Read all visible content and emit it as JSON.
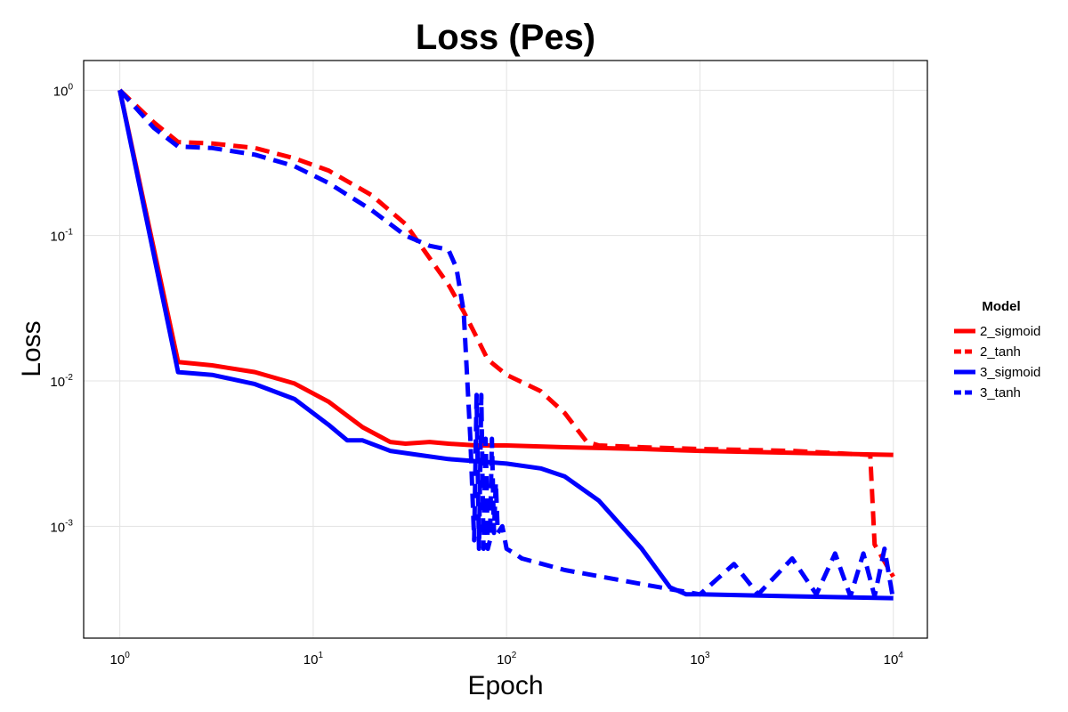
{
  "chart_data": {
    "type": "line",
    "title": "Loss (Pes)",
    "xlabel": "Epoch",
    "ylabel": "Loss",
    "xscale": "log",
    "yscale": "log",
    "xlim": [
      0.65,
      15000
    ],
    "ylim": [
      0.00017,
      1.6
    ],
    "grid": true,
    "x_ticks": [
      {
        "value": 1,
        "base": "10",
        "exp": "0"
      },
      {
        "value": 10,
        "base": "10",
        "exp": "1"
      },
      {
        "value": 100,
        "base": "10",
        "exp": "2"
      },
      {
        "value": 1000,
        "base": "10",
        "exp": "3"
      },
      {
        "value": 10000,
        "base": "10",
        "exp": "4"
      }
    ],
    "y_ticks": [
      {
        "value": 1,
        "base": "10",
        "exp": "0"
      },
      {
        "value": 0.1,
        "base": "10",
        "exp": "-1"
      },
      {
        "value": 0.01,
        "base": "10",
        "exp": "-2"
      },
      {
        "value": 0.001,
        "base": "10",
        "exp": "-3"
      }
    ],
    "legend": {
      "title": "Model",
      "position": "right"
    },
    "series": [
      {
        "name": "2_sigmoid",
        "color": "#ff0000",
        "dash": "solid",
        "x": [
          1,
          2,
          3,
          5,
          8,
          12,
          18,
          25,
          30,
          40,
          50,
          70,
          100,
          200,
          500,
          1000,
          3000,
          10000
        ],
        "y": [
          1.0,
          0.0135,
          0.0128,
          0.0115,
          0.0096,
          0.0072,
          0.0048,
          0.0038,
          0.0037,
          0.0038,
          0.0037,
          0.0036,
          0.0036,
          0.0035,
          0.0034,
          0.0033,
          0.0032,
          0.0031
        ]
      },
      {
        "name": "2_tanh",
        "color": "#ff0000",
        "dash": "dashed",
        "x": [
          1,
          1.5,
          2,
          3,
          5,
          8,
          12,
          20,
          30,
          40,
          50,
          60,
          70,
          80,
          100,
          150,
          200,
          260,
          300,
          500,
          1000,
          3000,
          7500,
          7600,
          8000,
          10000
        ],
        "y": [
          1.0,
          0.6,
          0.44,
          0.43,
          0.4,
          0.34,
          0.28,
          0.19,
          0.12,
          0.07,
          0.046,
          0.03,
          0.02,
          0.014,
          0.011,
          0.0085,
          0.006,
          0.0038,
          0.0036,
          0.0035,
          0.0034,
          0.0033,
          0.0031,
          0.0031,
          0.00075,
          0.00045
        ]
      },
      {
        "name": "3_sigmoid",
        "color": "#0000ff",
        "dash": "solid",
        "x": [
          1,
          2,
          3,
          5,
          8,
          12,
          15,
          18,
          25,
          35,
          50,
          100,
          150,
          200,
          300,
          500,
          700,
          850,
          1000,
          3000,
          10000
        ],
        "y": [
          1.0,
          0.0115,
          0.011,
          0.0095,
          0.0075,
          0.005,
          0.0039,
          0.0039,
          0.0033,
          0.0031,
          0.0029,
          0.0027,
          0.0025,
          0.0022,
          0.0015,
          0.0007,
          0.00038,
          0.00034,
          0.00034,
          0.00033,
          0.00032
        ]
      },
      {
        "name": "3_tanh",
        "color": "#0000ff",
        "dash": "dashed",
        "x": [
          1,
          1.5,
          2,
          3,
          5,
          8,
          12,
          20,
          30,
          40,
          50,
          55,
          60,
          65,
          68,
          70,
          72,
          74,
          76,
          78,
          80,
          82,
          84,
          86,
          88,
          90,
          95,
          100,
          110,
          120,
          200,
          500,
          1000,
          1500,
          2000,
          3000,
          4000,
          5000,
          6000,
          7000,
          8000,
          9000,
          10000
        ],
        "y": [
          1.0,
          0.55,
          0.41,
          0.4,
          0.36,
          0.3,
          0.23,
          0.15,
          0.1,
          0.085,
          0.08,
          0.06,
          0.03,
          0.004,
          0.0008,
          0.008,
          0.0007,
          0.008,
          0.0007,
          0.004,
          0.0007,
          0.0008,
          0.004,
          0.0009,
          0.002,
          0.0009,
          0.001,
          0.0007,
          0.00065,
          0.0006,
          0.0005,
          0.0004,
          0.00034,
          0.00055,
          0.00034,
          0.0006,
          0.00034,
          0.00065,
          0.00033,
          0.00065,
          0.00033,
          0.0007,
          0.00031
        ]
      }
    ]
  }
}
